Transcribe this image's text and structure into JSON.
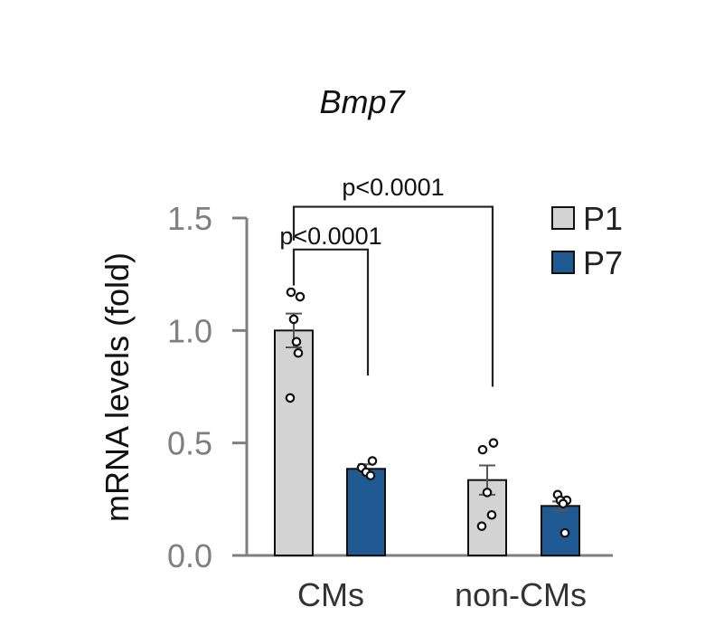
{
  "chart_data": {
    "type": "bar",
    "title": "Bmp7",
    "xlabel": "",
    "ylabel": "mRNA levels (fold)",
    "ylim": [
      0,
      1.5
    ],
    "yticks": [
      "0.0",
      "0.5",
      "1.0",
      "1.5"
    ],
    "ytick_values": [
      0,
      0.5,
      1.0,
      1.5
    ],
    "categories": [
      "CMs",
      "non-CMs"
    ],
    "legend_position": "top-right",
    "grid": false,
    "series": [
      {
        "name": "P1",
        "color": "#d3d3d3",
        "values": [
          1.0,
          0.335
        ],
        "errors": [
          0.075,
          0.065
        ],
        "points": [
          [
            1.17,
            1.15,
            1.05,
            0.95,
            0.9,
            0.7
          ],
          [
            0.5,
            0.47,
            0.28,
            0.18,
            0.13
          ]
        ]
      },
      {
        "name": "P7",
        "color": "#1f5a93",
        "values": [
          0.385,
          0.22
        ],
        "errors": [
          0.02,
          0.02
        ],
        "points": [
          [
            0.42,
            0.39,
            0.37,
            0.355
          ],
          [
            0.27,
            0.245,
            0.245,
            0.23,
            0.1
          ]
        ]
      }
    ],
    "annotations": [
      {
        "text": "p<0.0001",
        "from": "CMs P1",
        "to": "CMs P7"
      },
      {
        "text": "p<0.0001",
        "from": "CMs P1",
        "to": "non-CMs P1"
      }
    ]
  }
}
